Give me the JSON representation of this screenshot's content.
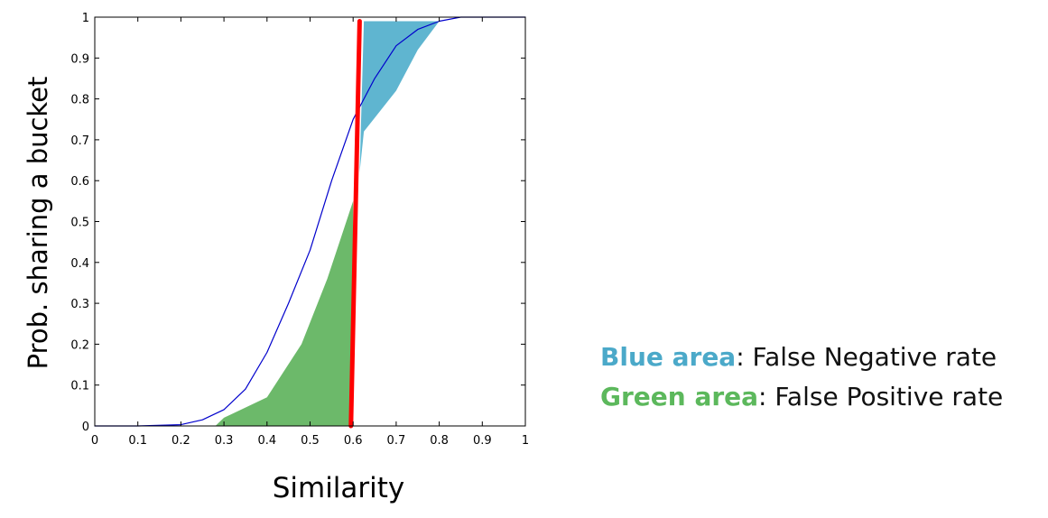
{
  "chart_data": {
    "type": "line",
    "xlabel": "Similarity",
    "ylabel": "Prob. sharing a bucket",
    "xlim": [
      0,
      1
    ],
    "ylim": [
      0,
      1
    ],
    "x_ticks": [
      "0",
      "0.1",
      "0.2",
      "0.3",
      "0.4",
      "0.5",
      "0.6",
      "0.7",
      "0.8",
      "0.9",
      "1"
    ],
    "y_ticks": [
      "0",
      "0.1",
      "0.2",
      "0.3",
      "0.4",
      "0.5",
      "0.6",
      "0.7",
      "0.8",
      "0.9",
      "1"
    ],
    "grid": false,
    "series": [
      {
        "kind": "s-curve",
        "color": "#0000cc",
        "x": [
          0,
          0.1,
          0.2,
          0.25,
          0.3,
          0.35,
          0.4,
          0.45,
          0.5,
          0.55,
          0.6,
          0.65,
          0.7,
          0.75,
          0.8,
          0.85,
          0.9,
          1
        ],
        "y": [
          0,
          0,
          0.003,
          0.015,
          0.04,
          0.09,
          0.18,
          0.3,
          0.43,
          0.6,
          0.75,
          0.85,
          0.93,
          0.97,
          0.99,
          1,
          1,
          1
        ]
      },
      {
        "kind": "threshold",
        "color": "#ff0000",
        "x": [
          0.595,
          0.615
        ],
        "y": [
          0,
          0.99
        ]
      }
    ],
    "areas": [
      {
        "kind": "false-positive",
        "color": "#6cb96a",
        "x": [
          0.28,
          0.3,
          0.4,
          0.48,
          0.54,
          0.6,
          0.6
        ],
        "y": [
          0,
          0.02,
          0.07,
          0.2,
          0.36,
          0.55,
          0
        ]
      },
      {
        "kind": "false-negative",
        "color": "#5fb5d0",
        "x": [
          0.615,
          0.625,
          0.7,
          0.75,
          0.8,
          0.625
        ],
        "y": [
          0.62,
          0.72,
          0.82,
          0.92,
          0.99,
          0.99
        ]
      }
    ]
  },
  "legend": {
    "blue_key": "Blue area",
    "blue_color": "#4ba9c9",
    "blue_text": ": False Negative rate",
    "green_key": "Green area",
    "green_color": "#5cb85c",
    "green_text": ": False Positive rate"
  }
}
